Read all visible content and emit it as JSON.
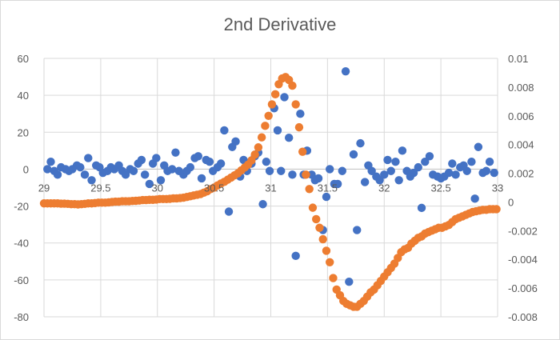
{
  "chart_data": {
    "type": "scatter",
    "title": "2nd Derivative",
    "xlabel": "",
    "ylabel": "",
    "y2label": "",
    "xlim": [
      29,
      33
    ],
    "ylim": [
      -80,
      60
    ],
    "y2lim": [
      -0.008,
      0.01
    ],
    "grid": true,
    "legend": "none",
    "x_ticks": [
      "29",
      "29.5",
      "30",
      "30.5",
      "31",
      "31.5",
      "32",
      "32.5",
      "33"
    ],
    "x_tick_values": [
      29,
      29.5,
      30,
      30.5,
      31,
      31.5,
      32,
      32.5,
      33
    ],
    "y_ticks": [
      "60",
      "40",
      "20",
      "0",
      "-20",
      "-40",
      "-60",
      "-80"
    ],
    "y_tick_values": [
      60,
      40,
      20,
      0,
      -20,
      -40,
      -60,
      -80
    ],
    "y2_ticks": [
      "0.01",
      "0.008",
      "0.006",
      "0.004",
      "0.002",
      "0",
      "-0.002",
      "-0.004",
      "-0.006",
      "-0.008"
    ],
    "y2_tick_values": [
      0.01,
      0.008,
      0.006,
      0.004,
      0.002,
      0,
      -0.002,
      -0.004,
      -0.006,
      -0.008
    ],
    "series": [
      {
        "color": "#4472c4",
        "axis": "primary",
        "x": [
          29.03,
          29.06,
          29.09,
          29.12,
          29.15,
          29.19,
          29.22,
          29.25,
          29.29,
          29.32,
          29.36,
          29.39,
          29.42,
          29.46,
          29.49,
          29.52,
          29.56,
          29.59,
          29.62,
          29.66,
          29.69,
          29.72,
          29.76,
          29.79,
          29.83,
          29.86,
          29.89,
          29.93,
          29.96,
          29.99,
          30.03,
          30.06,
          30.09,
          30.13,
          30.16,
          30.19,
          30.23,
          30.26,
          30.29,
          30.33,
          30.36,
          30.39,
          30.43,
          30.46,
          30.49,
          30.53,
          30.56,
          30.59,
          30.63,
          30.66,
          30.69,
          30.73,
          30.76,
          30.79,
          30.83,
          30.86,
          30.89,
          30.93,
          30.96,
          30.99,
          31.03,
          31.06,
          31.09,
          31.12,
          31.16,
          31.19,
          31.22,
          31.26,
          31.29,
          31.32,
          31.36,
          31.39,
          31.42,
          31.46,
          31.49,
          31.52,
          31.56,
          31.59,
          31.63,
          31.66,
          31.69,
          31.73,
          31.76,
          31.79,
          31.83,
          31.86,
          31.89,
          31.93,
          31.96,
          32.0,
          32.03,
          32.06,
          32.1,
          32.13,
          32.16,
          32.2,
          32.23,
          32.26,
          32.3,
          32.33,
          32.36,
          32.4,
          32.43,
          32.47,
          32.5,
          32.53,
          32.57,
          32.6,
          32.63,
          32.67,
          32.7,
          32.73,
          32.77,
          32.8,
          32.83,
          32.87,
          32.9,
          32.93,
          32.97
        ],
        "y": [
          0,
          4,
          -1,
          -3,
          1,
          0,
          -1,
          0,
          2,
          1,
          -3,
          6,
          -6,
          2,
          1,
          -2,
          -1,
          1,
          0,
          2,
          -1,
          -3,
          0,
          -1,
          3,
          5,
          -3,
          -8,
          3,
          6,
          -6,
          2,
          -1,
          0,
          9,
          -1,
          -3,
          -1,
          1,
          6,
          7,
          -5,
          5,
          4,
          -1,
          1,
          3,
          21,
          -23,
          12,
          15,
          -4,
          5,
          -1,
          3,
          7,
          9,
          -19,
          4,
          -1,
          33,
          21,
          -1,
          39,
          17,
          -3,
          -47,
          30,
          -3,
          10,
          -3,
          -6,
          -5,
          -33,
          -15,
          0,
          -8,
          -8,
          -1,
          53,
          -61,
          8,
          -33,
          14,
          -7,
          2,
          -1,
          -4,
          -6,
          -3,
          5,
          -1,
          4,
          -6,
          10,
          -1,
          -4,
          -2,
          1,
          -21,
          4,
          7,
          -3,
          -4,
          -5,
          -4,
          -2,
          3,
          -3,
          1,
          2,
          -1,
          4,
          -16,
          12,
          -2,
          -1,
          4,
          -2
        ]
      },
      {
        "color": "#ed7d31",
        "axis": "secondary",
        "x": [
          29.0,
          29.03,
          29.06,
          29.09,
          29.12,
          29.15,
          29.18,
          29.21,
          29.24,
          29.27,
          29.3,
          29.33,
          29.36,
          29.39,
          29.42,
          29.45,
          29.48,
          29.51,
          29.54,
          29.57,
          29.6,
          29.63,
          29.66,
          29.69,
          29.72,
          29.75,
          29.78,
          29.81,
          29.84,
          29.87,
          29.9,
          29.93,
          29.96,
          29.99,
          30.02,
          30.05,
          30.08,
          30.11,
          30.14,
          30.17,
          30.2,
          30.23,
          30.26,
          30.29,
          30.32,
          30.35,
          30.38,
          30.41,
          30.44,
          30.47,
          30.5,
          30.53,
          30.56,
          30.59,
          30.62,
          30.65,
          30.68,
          30.71,
          30.74,
          30.77,
          30.8,
          30.83,
          30.86,
          30.89,
          30.92,
          30.95,
          30.98,
          31.01,
          31.04,
          31.07,
          31.1,
          31.13,
          31.16,
          31.19,
          31.22,
          31.25,
          31.28,
          31.31,
          31.34,
          31.37,
          31.4,
          31.43,
          31.46,
          31.49,
          31.52,
          31.55,
          31.58,
          31.61,
          31.64,
          31.67,
          31.7,
          31.73,
          31.76,
          31.79,
          31.82,
          31.85,
          31.88,
          31.91,
          31.94,
          31.97,
          32.0,
          32.03,
          32.06,
          32.09,
          32.12,
          32.15,
          32.18,
          32.21,
          32.24,
          32.27,
          32.3,
          32.33,
          32.36,
          32.39,
          32.42,
          32.45,
          32.48,
          32.51,
          32.54,
          32.57,
          32.6,
          32.63,
          32.66,
          32.69,
          32.72,
          32.75,
          32.78,
          32.81,
          32.84,
          32.87,
          32.9,
          32.93,
          32.96,
          32.99
        ],
        "y": [
          -0.0001,
          -0.0001,
          -0.0001,
          -0.0001,
          -0.0001,
          -0.00012,
          -0.00012,
          -0.00013,
          -0.00015,
          -0.00015,
          -0.00017,
          -0.00015,
          -0.00013,
          -0.0001,
          -0.0001,
          -8e-05,
          -5e-05,
          -5e-05,
          -5e-05,
          -3e-05,
          0,
          2e-05,
          2e-05,
          5e-05,
          5e-05,
          5e-05,
          7e-05,
          8e-05,
          0.0001,
          0.00013,
          0.00013,
          0.00015,
          0.00015,
          0.00017,
          0.0002,
          0.0002,
          0.0002,
          0.00022,
          0.00025,
          0.00025,
          0.00027,
          0.0003,
          0.00035,
          0.0004,
          0.00045,
          0.0005,
          0.00055,
          0.00065,
          0.00075,
          0.0009,
          0.001,
          0.00115,
          0.00128,
          0.0014,
          0.00155,
          0.0017,
          0.00185,
          0.002,
          0.0022,
          0.0024,
          0.0026,
          0.0029,
          0.0033,
          0.0038,
          0.0045,
          0.0053,
          0.006,
          0.0068,
          0.0075,
          0.0082,
          0.0086,
          0.0087,
          0.0085,
          0.0081,
          0.0068,
          0.0052,
          0.0035,
          0.0019,
          0.0009,
          -0.0004,
          -0.0012,
          -0.0018,
          -0.0026,
          -0.0034,
          -0.0042,
          -0.0053,
          -0.0061,
          -0.0065,
          -0.0069,
          -0.0071,
          -0.0072,
          -0.0073,
          -0.0073,
          -0.0071,
          -0.0069,
          -0.0066,
          -0.0063,
          -0.0061,
          -0.0058,
          -0.0055,
          -0.0052,
          -0.0049,
          -0.0046,
          -0.0043,
          -0.0039,
          -0.0035,
          -0.0033,
          -0.0032,
          -0.0029,
          -0.0027,
          -0.0025,
          -0.0024,
          -0.0022,
          -0.0021,
          -0.002,
          -0.0019,
          -0.0018,
          -0.0018,
          -0.0017,
          -0.0016,
          -0.0014,
          -0.0012,
          -0.0011,
          -0.001,
          -0.0009,
          -0.0008,
          -0.0007,
          -0.00065,
          -0.0006,
          -0.00055,
          -0.00055,
          -0.0005,
          -0.0005,
          -0.0005
        ]
      }
    ]
  }
}
